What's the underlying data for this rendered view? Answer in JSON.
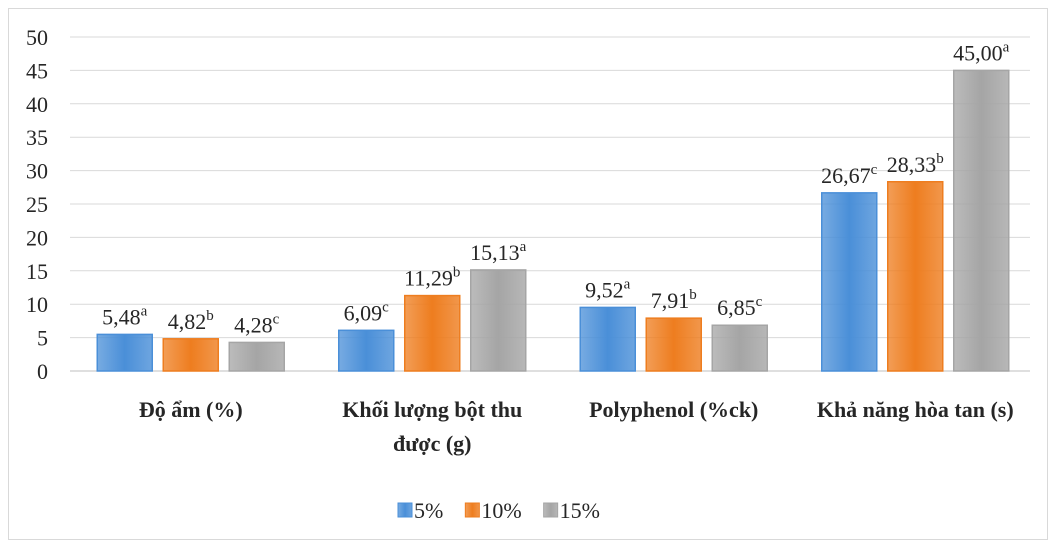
{
  "chart_data": {
    "type": "bar",
    "categories": [
      "Độ ẩm (%)",
      "Khối lượng bột thu được (g)",
      "Polyphenol (%ck)",
      "Khả năng hòa tan (s)"
    ],
    "series": [
      {
        "name": "5%",
        "color": "#4a8fd8",
        "values": [
          5.48,
          6.09,
          9.52,
          26.67
        ],
        "value_labels": [
          "5,48",
          "6,09",
          "9,52",
          "26,67"
        ],
        "significance": [
          "a",
          "c",
          "a",
          "c"
        ]
      },
      {
        "name": "10%",
        "color": "#ee7d1f",
        "values": [
          4.82,
          11.29,
          7.91,
          28.33
        ],
        "value_labels": [
          "4,82",
          "11,29",
          "7,91",
          "28,33"
        ],
        "significance": [
          "b",
          "b",
          "b",
          "b"
        ]
      },
      {
        "name": "15%",
        "color": "#a5a5a5",
        "values": [
          4.28,
          15.13,
          6.85,
          45.0
        ],
        "value_labels": [
          "4,28",
          "15,13",
          "6,85",
          "45,00"
        ],
        "significance": [
          "c",
          "a",
          "c",
          "a"
        ]
      }
    ],
    "ylim": [
      0,
      50
    ],
    "yticks": [
      0,
      5,
      10,
      15,
      20,
      25,
      30,
      35,
      40,
      45,
      50
    ],
    "grid": true,
    "legend": "bottom"
  }
}
